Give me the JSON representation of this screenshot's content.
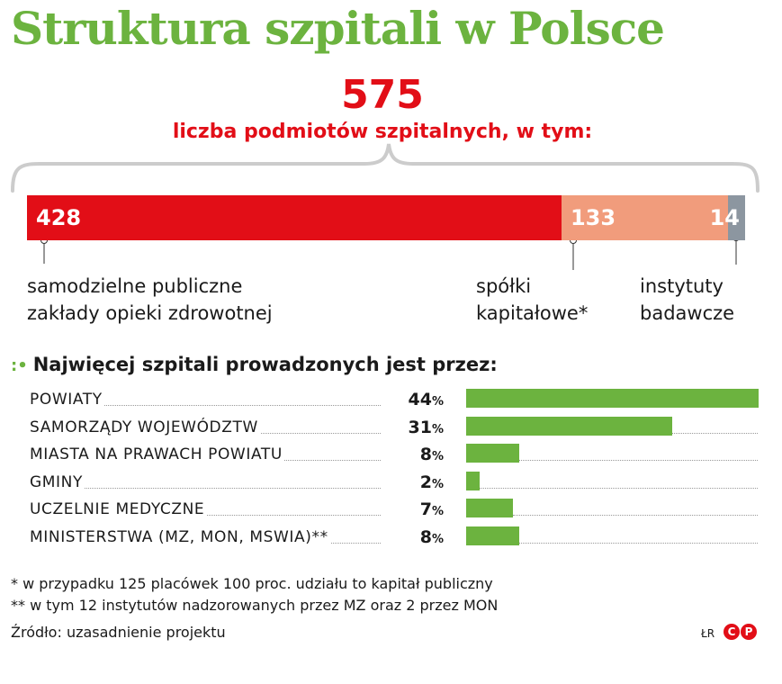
{
  "title": "Struktura szpitali w Polsce",
  "total": {
    "number": "575",
    "label": "liczba podmiotów szpitalnych, w tym:"
  },
  "colors": {
    "title": "#6cb33f",
    "accent": "#e20e17",
    "segment_1": "#e20e17",
    "segment_2": "#f19c7c",
    "segment_3": "#8c96a0",
    "bars": "#6cb33f"
  },
  "chart_data": [
    {
      "type": "bar",
      "orientation": "stacked-horizontal",
      "total": 575,
      "series": [
        {
          "name": "samodzielne publiczne zakłady opieki zdrowotnej",
          "value": 428
        },
        {
          "name": "spółki kapitałowe*",
          "value": 133
        },
        {
          "name": "instytuty badawcze",
          "value": 14
        }
      ]
    },
    {
      "type": "bar",
      "orientation": "horizontal",
      "title": "Najwięcej szpitali prowadzonych jest przez:",
      "unit": "%",
      "categories": [
        "POWIATY",
        "SAMORZĄDY WOJEWÓDZTW",
        "MIASTA NA PRAWACH POWIATU",
        "GMINY",
        "UCZELNIE MEDYCZNE",
        "MINISTERSTWA (MZ, MON, MSWIA)**"
      ],
      "values": [
        44,
        31,
        8,
        2,
        7,
        8
      ]
    }
  ],
  "segments": [
    {
      "value": "428",
      "label_line1": "samodzielne publiczne",
      "label_line2": "zakłady opieki zdrowotnej"
    },
    {
      "value": "133",
      "label_line1": "spółki",
      "label_line2": "kapitałowe*"
    },
    {
      "value": "14",
      "label_line1": "instytuty",
      "label_line2": "badawcze"
    }
  ],
  "breakdown": {
    "heading": "Najwięcej szpitali prowadzonych jest przez:",
    "rows": [
      {
        "label": "POWIATY",
        "value": "44",
        "unit": "%"
      },
      {
        "label": "SAMORZĄDY WOJEWÓDZTW",
        "value": "31",
        "unit": "%"
      },
      {
        "label": "MIASTA NA PRAWACH POWIATU",
        "value": "8",
        "unit": "%"
      },
      {
        "label": "GMINY",
        "value": "2",
        "unit": "%"
      },
      {
        "label": "UCZELNIE MEDYCZNE",
        "value": "7",
        "unit": "%"
      },
      {
        "label": "MINISTERSTWA (MZ, MON, MSWIA)**",
        "value": "8",
        "unit": "%"
      }
    ]
  },
  "footnotes": [
    "* w przypadku 125 placówek 100 proc. udziału to kapitał publiczny",
    "** w tym 12 instytutów nadzorowanych przez MZ oraz 2 przez MON"
  ],
  "source": "Źródło: uzasadnienie projektu",
  "credit": "ŁR",
  "copyright": [
    "C",
    "P"
  ]
}
